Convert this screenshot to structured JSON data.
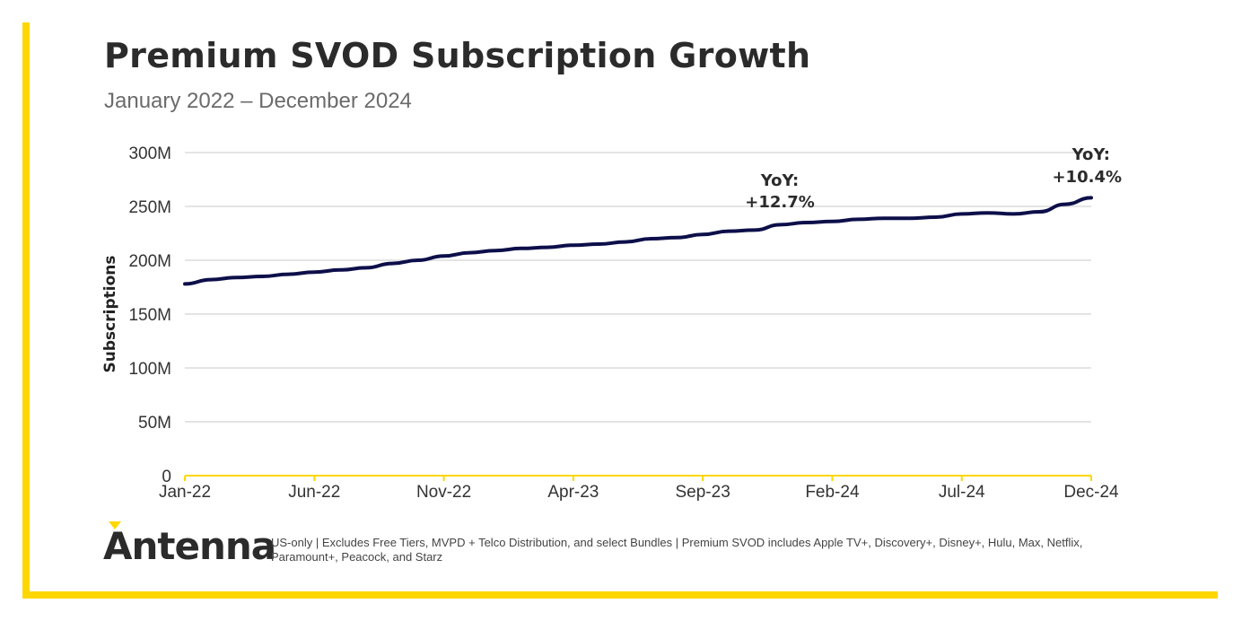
{
  "title": "Premium SVOD Subscription Growth",
  "subtitle": "January 2022 – December 2024",
  "footnote": "US-only | Excludes Free Tiers, MVPD + Telco Distribution, and select Bundles | Premium SVOD includes Apple TV+, Discovery+, Disney+, Hulu, Max, Netflix, Paramount+, Peacock, and Starz",
  "logo": "Antenna",
  "colors": {
    "line": "#0d0f4a",
    "accent": "#FFD700",
    "grid": "#c8c8c8"
  },
  "chart_data": {
    "type": "line",
    "ylabel": "Subscriptions",
    "xlabel": "",
    "ylim": [
      0,
      300
    ],
    "yticks": [
      0,
      50,
      100,
      150,
      200,
      250,
      300
    ],
    "ytick_labels": [
      "0",
      "50M",
      "100M",
      "150M",
      "200M",
      "250M",
      "300M"
    ],
    "xtick_labels": [
      "Jan-22",
      "Jun-22",
      "Nov-22",
      "Apr-23",
      "Sep-23",
      "Feb-24",
      "Jul-24",
      "Dec-24"
    ],
    "grid": true,
    "x": [
      "Jan-22",
      "Feb-22",
      "Mar-22",
      "Apr-22",
      "May-22",
      "Jun-22",
      "Jul-22",
      "Aug-22",
      "Sep-22",
      "Oct-22",
      "Nov-22",
      "Dec-22",
      "Jan-23",
      "Feb-23",
      "Mar-23",
      "Apr-23",
      "May-23",
      "Jun-23",
      "Jul-23",
      "Aug-23",
      "Sep-23",
      "Oct-23",
      "Nov-23",
      "Dec-23",
      "Jan-24",
      "Feb-24",
      "Mar-24",
      "Apr-24",
      "May-24",
      "Jun-24",
      "Jul-24",
      "Aug-24",
      "Sep-24",
      "Oct-24",
      "Nov-24",
      "Dec-24"
    ],
    "series": [
      {
        "values": [
          178,
          182,
          184,
          185,
          187,
          189,
          191,
          193,
          197,
          200,
          204,
          207,
          209,
          211,
          212,
          214,
          215,
          217,
          220,
          221,
          224,
          227,
          228,
          233,
          235,
          236,
          238,
          239,
          239,
          240,
          243,
          244,
          243,
          245,
          252,
          258
        ]
      }
    ],
    "annotations": [
      {
        "x": "Dec-23",
        "line1": "YoY:",
        "line2": "+12.7%"
      },
      {
        "x": "Dec-24",
        "line1": "YoY:",
        "line2": "+10.4%"
      }
    ]
  }
}
